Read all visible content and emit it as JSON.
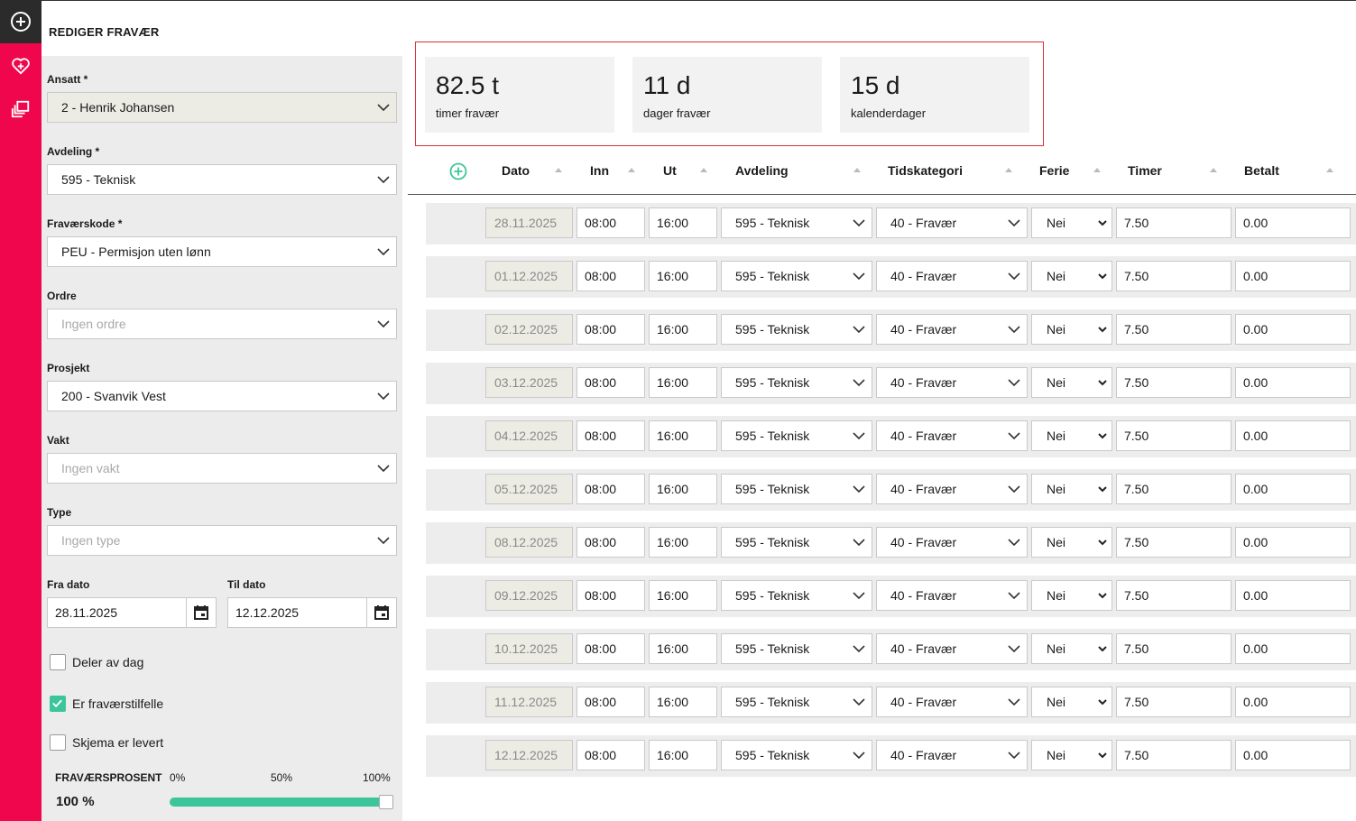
{
  "colors": {
    "rail": "#f0064c",
    "rail_top": "#2b2b2b",
    "accent": "#3cc59a",
    "summary_border": "#d6303a"
  },
  "rail": {
    "icons": [
      "add-circle-icon",
      "heart-plus-icon",
      "copy-stack-icon"
    ]
  },
  "form": {
    "title": "REDIGER FRAVÆR",
    "ansatt": {
      "label": "Ansatt *",
      "value": "2 - Henrik Johansen"
    },
    "avdeling": {
      "label": "Avdeling *",
      "value": "595 - Teknisk"
    },
    "fravaerskode": {
      "label": "Fraværskode *",
      "value": "PEU - Permisjon uten lønn"
    },
    "ordre": {
      "label": "Ordre",
      "placeholder": "Ingen ordre"
    },
    "prosjekt": {
      "label": "Prosjekt",
      "value": "200 - Svanvik Vest"
    },
    "vakt": {
      "label": "Vakt",
      "placeholder": "Ingen vakt"
    },
    "type": {
      "label": "Type",
      "placeholder": "Ingen type"
    },
    "fra_dato": {
      "label": "Fra dato",
      "value": "28.11.2025"
    },
    "til_dato": {
      "label": "Til dato",
      "value": "12.12.2025"
    },
    "deler_av_dag": {
      "label": "Deler av dag",
      "checked": false
    },
    "er_fravaerstilfelle": {
      "label": "Er fraværstilfelle",
      "checked": true
    },
    "skjema_levert": {
      "label": "Skjema er levert",
      "checked": false
    },
    "fravaersprosent": {
      "label": "FRAVÆRSPROSENT",
      "marks": [
        "0%",
        "50%",
        "100%"
      ],
      "value_text": "100 %",
      "value": 1.0
    }
  },
  "summary": [
    {
      "value": "82.5 t",
      "label": "timer fravær"
    },
    {
      "value": "11 d",
      "label": "dager fravær"
    },
    {
      "value": "15 d",
      "label": "kalenderdager"
    }
  ],
  "table": {
    "headers": [
      "Dato",
      "Inn",
      "Ut",
      "Avdeling",
      "Tidskategori",
      "Ferie",
      "Timer",
      "Betalt"
    ],
    "rows": [
      {
        "dato": "28.11.2025",
        "inn": "08:00",
        "ut": "16:00",
        "avdeling": "595 - Teknisk",
        "tidskategori": "40 - Fravær",
        "ferie": "Nei",
        "timer": "7.50",
        "betalt": "0.00"
      },
      {
        "dato": "01.12.2025",
        "inn": "08:00",
        "ut": "16:00",
        "avdeling": "595 - Teknisk",
        "tidskategori": "40 - Fravær",
        "ferie": "Nei",
        "timer": "7.50",
        "betalt": "0.00"
      },
      {
        "dato": "02.12.2025",
        "inn": "08:00",
        "ut": "16:00",
        "avdeling": "595 - Teknisk",
        "tidskategori": "40 - Fravær",
        "ferie": "Nei",
        "timer": "7.50",
        "betalt": "0.00"
      },
      {
        "dato": "03.12.2025",
        "inn": "08:00",
        "ut": "16:00",
        "avdeling": "595 - Teknisk",
        "tidskategori": "40 - Fravær",
        "ferie": "Nei",
        "timer": "7.50",
        "betalt": "0.00"
      },
      {
        "dato": "04.12.2025",
        "inn": "08:00",
        "ut": "16:00",
        "avdeling": "595 - Teknisk",
        "tidskategori": "40 - Fravær",
        "ferie": "Nei",
        "timer": "7.50",
        "betalt": "0.00"
      },
      {
        "dato": "05.12.2025",
        "inn": "08:00",
        "ut": "16:00",
        "avdeling": "595 - Teknisk",
        "tidskategori": "40 - Fravær",
        "ferie": "Nei",
        "timer": "7.50",
        "betalt": "0.00"
      },
      {
        "dato": "08.12.2025",
        "inn": "08:00",
        "ut": "16:00",
        "avdeling": "595 - Teknisk",
        "tidskategori": "40 - Fravær",
        "ferie": "Nei",
        "timer": "7.50",
        "betalt": "0.00"
      },
      {
        "dato": "09.12.2025",
        "inn": "08:00",
        "ut": "16:00",
        "avdeling": "595 - Teknisk",
        "tidskategori": "40 - Fravær",
        "ferie": "Nei",
        "timer": "7.50",
        "betalt": "0.00"
      },
      {
        "dato": "10.12.2025",
        "inn": "08:00",
        "ut": "16:00",
        "avdeling": "595 - Teknisk",
        "tidskategori": "40 - Fravær",
        "ferie": "Nei",
        "timer": "7.50",
        "betalt": "0.00"
      },
      {
        "dato": "11.12.2025",
        "inn": "08:00",
        "ut": "16:00",
        "avdeling": "595 - Teknisk",
        "tidskategori": "40 - Fravær",
        "ferie": "Nei",
        "timer": "7.50",
        "betalt": "0.00"
      },
      {
        "dato": "12.12.2025",
        "inn": "08:00",
        "ut": "16:00",
        "avdeling": "595 - Teknisk",
        "tidskategori": "40 - Fravær",
        "ferie": "Nei",
        "timer": "7.50",
        "betalt": "0.00"
      }
    ]
  }
}
